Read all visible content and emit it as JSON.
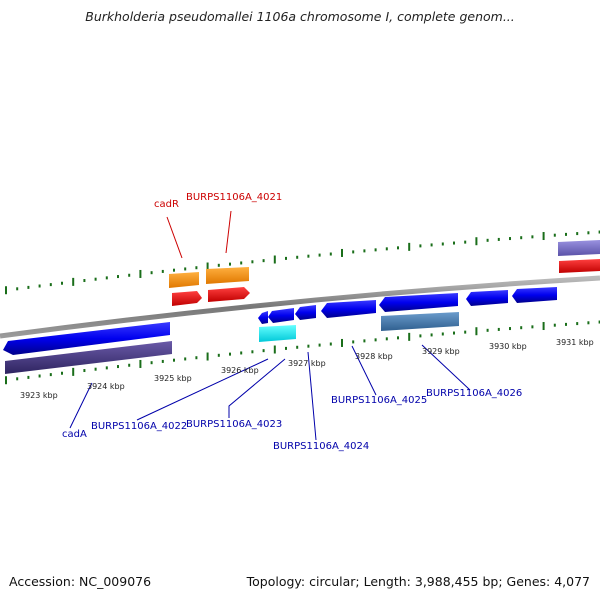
{
  "title": "Burkholderia pseudomallei 1106a chromosome I, complete genom...",
  "footer": {
    "accession": "Accession: NC_009076",
    "summary": "Topology: circular; Length: 3,988,455 bp; Genes: 4,077"
  },
  "colors": {
    "forward_label": "#cc0000",
    "reverse_label": "#0000aa",
    "tick": "#1a6e1a",
    "backbone": "#888888",
    "scale_text": "#222222"
  },
  "scale_labels": [
    "3923 kbp",
    "3924 kbp",
    "3925 kbp",
    "3926 kbp",
    "3927 kbp",
    "3928 kbp",
    "3929 kbp",
    "3930 kbp",
    "3931 kbp"
  ],
  "gene_labels": {
    "forward": [
      "cadR",
      "BURPS1106A_4021"
    ],
    "reverse": [
      "cadA",
      "BURPS1106A_4022",
      "BURPS1106A_4023",
      "BURPS1106A_4024",
      "BURPS1106A_4025",
      "BURPS1106A_4026"
    ]
  }
}
